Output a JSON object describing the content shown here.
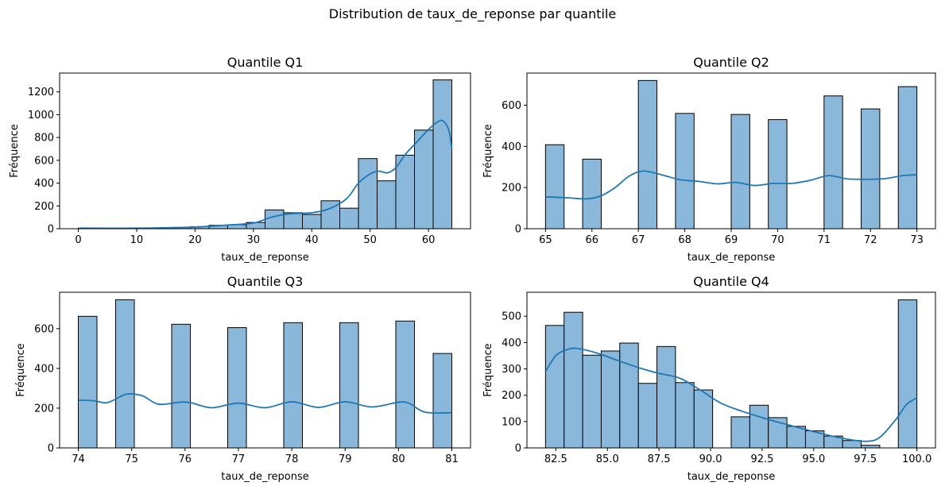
{
  "suptitle": "Distribution de taux_de_reponse par quantile",
  "chart_data": [
    {
      "type": "bar",
      "title": "Quantile Q1",
      "xlabel": "taux_de_reponse",
      "ylabel": "Fréquence",
      "xlim": [
        -3.2,
        67.2
      ],
      "ylim": [
        0,
        1365
      ],
      "xticks": [
        0,
        10,
        20,
        30,
        40,
        50,
        60
      ],
      "xtick_labels": [
        "0",
        "10",
        "20",
        "30",
        "40",
        "50",
        "60"
      ],
      "yticks": [
        0,
        200,
        400,
        600,
        800,
        1000,
        1200
      ],
      "ytick_labels": [
        "0",
        "200",
        "400",
        "600",
        "800",
        "1000",
        "1200"
      ],
      "bins": [
        [
          0,
          3.2,
          4
        ],
        [
          3.2,
          6.4,
          2
        ],
        [
          6.4,
          9.6,
          2
        ],
        [
          9.6,
          12.8,
          4
        ],
        [
          12.8,
          16,
          6
        ],
        [
          16,
          19.2,
          10
        ],
        [
          19.2,
          22.4,
          18
        ],
        [
          22.4,
          25.6,
          30
        ],
        [
          25.6,
          28.8,
          35
        ],
        [
          28.8,
          32,
          55
        ],
        [
          32,
          35.2,
          165
        ],
        [
          35.2,
          38.4,
          140
        ],
        [
          38.4,
          41.6,
          125
        ],
        [
          41.6,
          44.8,
          245
        ],
        [
          44.8,
          48,
          180
        ],
        [
          48,
          51.2,
          615
        ],
        [
          51.2,
          54.4,
          420
        ],
        [
          54.4,
          57.6,
          645
        ],
        [
          57.6,
          60.8,
          865
        ],
        [
          60.8,
          64,
          1305
        ]
      ],
      "kde": [
        [
          0,
          5
        ],
        [
          10,
          5
        ],
        [
          20,
          15
        ],
        [
          25,
          30
        ],
        [
          30,
          50
        ],
        [
          33,
          100
        ],
        [
          36,
          130
        ],
        [
          40,
          140
        ],
        [
          43,
          175
        ],
        [
          46,
          265
        ],
        [
          48,
          400
        ],
        [
          50,
          480
        ],
        [
          51.5,
          505
        ],
        [
          53,
          490
        ],
        [
          54.5,
          540
        ],
        [
          56,
          650
        ],
        [
          58,
          760
        ],
        [
          60,
          870
        ],
        [
          61.5,
          935
        ],
        [
          62.5,
          945
        ],
        [
          63.5,
          860
        ],
        [
          64,
          700
        ]
      ]
    },
    {
      "type": "bar",
      "title": "Quantile Q2",
      "xlabel": "taux_de_reponse",
      "ylabel": "Fréquence",
      "xlim": [
        64.6,
        73.4
      ],
      "ylim": [
        0,
        756
      ],
      "xticks": [
        65,
        66,
        67,
        68,
        69,
        70,
        71,
        72,
        73
      ],
      "xtick_labels": [
        "65",
        "66",
        "67",
        "68",
        "69",
        "70",
        "71",
        "72",
        "73"
      ],
      "yticks": [
        0,
        200,
        400,
        600
      ],
      "ytick_labels": [
        "0",
        "200",
        "400",
        "600"
      ],
      "bins": [
        [
          65,
          65.4,
          408
        ],
        [
          65.8,
          66.2,
          338
        ],
        [
          67,
          67.4,
          720
        ],
        [
          67.8,
          68.2,
          560
        ],
        [
          68.6,
          69.0,
          0
        ],
        [
          69.0,
          69.4,
          555
        ],
        [
          69.8,
          70.2,
          530
        ],
        [
          71,
          71.4,
          645
        ],
        [
          71.8,
          72.2,
          582
        ],
        [
          72.6,
          73,
          690
        ]
      ],
      "kde": [
        [
          65,
          155
        ],
        [
          65.5,
          150
        ],
        [
          65.9,
          145
        ],
        [
          66.2,
          160
        ],
        [
          66.5,
          200
        ],
        [
          66.8,
          255
        ],
        [
          67.1,
          280
        ],
        [
          67.5,
          262
        ],
        [
          67.9,
          238
        ],
        [
          68.3,
          230
        ],
        [
          68.7,
          218
        ],
        [
          69.1,
          225
        ],
        [
          69.5,
          210
        ],
        [
          69.9,
          220
        ],
        [
          70.3,
          220
        ],
        [
          70.7,
          235
        ],
        [
          71.1,
          258
        ],
        [
          71.5,
          242
        ],
        [
          71.9,
          240
        ],
        [
          72.3,
          243
        ],
        [
          72.7,
          258
        ],
        [
          73,
          262
        ]
      ]
    },
    {
      "type": "bar",
      "title": "Quantile Q3",
      "xlabel": "taux_de_reponse",
      "ylabel": "Fréquence",
      "xlim": [
        73.65,
        81.35
      ],
      "ylim": [
        0,
        783
      ],
      "xticks": [
        74,
        75,
        76,
        77,
        78,
        79,
        80,
        81
      ],
      "xtick_labels": [
        "74",
        "75",
        "76",
        "77",
        "78",
        "79",
        "80",
        "81"
      ],
      "yticks": [
        0,
        200,
        400,
        600
      ],
      "ytick_labels": [
        "0",
        "200",
        "400",
        "600"
      ],
      "bins": [
        [
          74,
          74.35,
          662
        ],
        [
          74.7,
          75.05,
          745
        ],
        [
          75.75,
          76.1,
          622
        ],
        [
          76.8,
          77.15,
          605
        ],
        [
          77.85,
          78.2,
          630
        ],
        [
          78.9,
          79.25,
          630
        ],
        [
          79.95,
          80.3,
          638
        ],
        [
          80.65,
          81,
          475
        ]
      ],
      "kde": [
        [
          74,
          240
        ],
        [
          74.3,
          237
        ],
        [
          74.55,
          228
        ],
        [
          74.9,
          270
        ],
        [
          75.2,
          262
        ],
        [
          75.5,
          220
        ],
        [
          75.9,
          230
        ],
        [
          76.1,
          228
        ],
        [
          76.5,
          202
        ],
        [
          77,
          225
        ],
        [
          77.5,
          202
        ],
        [
          78,
          232
        ],
        [
          78.5,
          204
        ],
        [
          79,
          232
        ],
        [
          79.5,
          206
        ],
        [
          80,
          230
        ],
        [
          80.2,
          224
        ],
        [
          80.5,
          180
        ],
        [
          81,
          177
        ]
      ]
    },
    {
      "type": "bar",
      "title": "Quantile Q4",
      "xlabel": "taux_de_reponse",
      "ylabel": "Fréquence",
      "xlim": [
        81.1,
        100.9
      ],
      "ylim": [
        0,
        591
      ],
      "xticks": [
        82.5,
        85.0,
        87.5,
        90.0,
        92.5,
        95.0,
        97.5,
        100.0
      ],
      "xtick_labels": [
        "82.5",
        "85.0",
        "87.5",
        "90.0",
        "92.5",
        "95.0",
        "97.5",
        "100.0"
      ],
      "yticks": [
        0,
        100,
        200,
        300,
        400,
        500
      ],
      "ytick_labels": [
        "0",
        "100",
        "200",
        "300",
        "400",
        "500"
      ],
      "bins": [
        [
          82,
          82.9,
          465
        ],
        [
          82.9,
          83.8,
          515
        ],
        [
          83.8,
          84.7,
          352
        ],
        [
          84.7,
          85.6,
          368
        ],
        [
          85.6,
          86.5,
          398
        ],
        [
          86.5,
          87.4,
          245
        ],
        [
          87.4,
          88.3,
          385
        ],
        [
          88.3,
          89.2,
          248
        ],
        [
          89.2,
          90.1,
          220
        ],
        [
          90.1,
          91.0,
          0
        ],
        [
          91.0,
          91.9,
          118
        ],
        [
          91.9,
          92.8,
          162
        ],
        [
          92.8,
          93.7,
          115
        ],
        [
          93.7,
          94.6,
          82
        ],
        [
          94.6,
          95.5,
          65
        ],
        [
          95.5,
          96.4,
          45
        ],
        [
          96.4,
          97.3,
          28
        ],
        [
          97.3,
          98.2,
          10
        ],
        [
          98.2,
          99.1,
          0
        ],
        [
          99.1,
          100,
          562
        ]
      ],
      "kde": [
        [
          82,
          290
        ],
        [
          82.5,
          350
        ],
        [
          83,
          372
        ],
        [
          83.5,
          378
        ],
        [
          84.5,
          360
        ],
        [
          85.5,
          332
        ],
        [
          86.5,
          305
        ],
        [
          87.5,
          283
        ],
        [
          88.5,
          265
        ],
        [
          89.5,
          220
        ],
        [
          90.5,
          170
        ],
        [
          91.5,
          140
        ],
        [
          92.5,
          115
        ],
        [
          93.5,
          93
        ],
        [
          94.5,
          72
        ],
        [
          95.5,
          52
        ],
        [
          96.5,
          35
        ],
        [
          97.5,
          25
        ],
        [
          98.2,
          40
        ],
        [
          99,
          110
        ],
        [
          99.5,
          165
        ],
        [
          100,
          190
        ]
      ]
    }
  ]
}
